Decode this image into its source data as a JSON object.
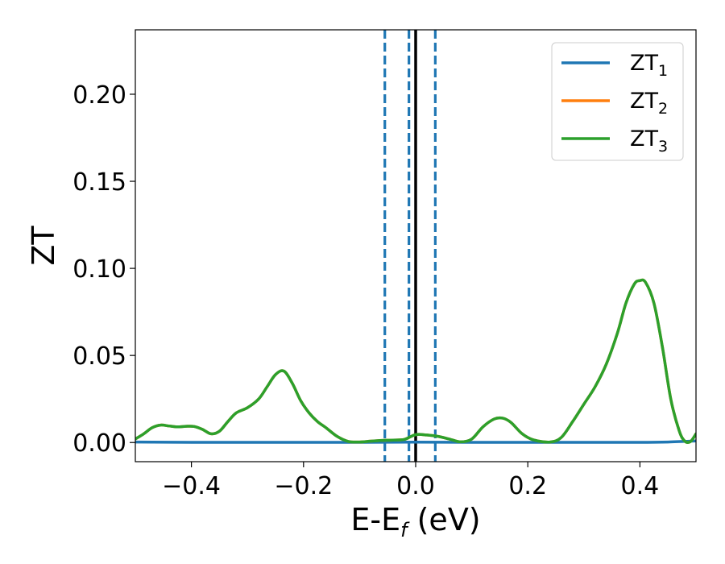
{
  "chart_data": {
    "type": "line",
    "xlabel": "E-E",
    "xlabel_sub": "f",
    "xlabel_unit": " (eV)",
    "ylabel": "ZT",
    "xlim": [
      -0.5,
      0.5
    ],
    "ylim": [
      -0.011,
      0.237
    ],
    "xticks": [
      -0.4,
      -0.2,
      0.0,
      0.2,
      0.4
    ],
    "xtick_labels": [
      "−0.4",
      "−0.2",
      "0.0",
      "0.2",
      "0.4"
    ],
    "yticks": [
      0.0,
      0.05,
      0.1,
      0.15,
      0.2
    ],
    "ytick_labels": [
      "0.00",
      "0.05",
      "0.10",
      "0.15",
      "0.20"
    ],
    "legend_position": "top-right",
    "grid": false,
    "vlines": [
      {
        "x": 0.0,
        "style": "solid",
        "color": "#000000"
      },
      {
        "x": -0.055,
        "style": "dashed",
        "color": "#1f77b4"
      },
      {
        "x": -0.012,
        "style": "dashed",
        "color": "#1f77b4"
      },
      {
        "x": 0.035,
        "style": "dashed",
        "color": "#1f77b4"
      }
    ],
    "series": [
      {
        "name": "ZT",
        "sub": "1",
        "color": "#1f77b4",
        "x": [
          -0.5,
          -0.4,
          -0.3,
          -0.2,
          -0.1,
          0.0,
          0.1,
          0.2,
          0.3,
          0.4,
          0.45,
          0.5
        ],
        "y": [
          0.0003,
          0.0001,
          0.0001,
          0.0001,
          0.0001,
          0.0002,
          0.0001,
          0.0001,
          0.0001,
          0.0001,
          0.0003,
          0.0009
        ]
      },
      {
        "name": "ZT",
        "sub": "2",
        "color": "#ff7f0e",
        "x": [
          -0.5,
          -0.485,
          -0.47,
          -0.455,
          -0.44,
          -0.425,
          -0.41,
          -0.395,
          -0.38,
          -0.365,
          -0.35,
          -0.335,
          -0.32,
          -0.3,
          -0.28,
          -0.265,
          -0.25,
          -0.235,
          -0.22,
          -0.205,
          -0.19,
          -0.175,
          -0.16,
          -0.14,
          -0.12,
          -0.1,
          -0.08,
          -0.06,
          -0.04,
          -0.02,
          0.0,
          0.02,
          0.04,
          0.06,
          0.08,
          0.1,
          0.12,
          0.14,
          0.155,
          0.17,
          0.19,
          0.21,
          0.24,
          0.26,
          0.28,
          0.3,
          0.32,
          0.34,
          0.36,
          0.375,
          0.39,
          0.4,
          0.41,
          0.425,
          0.44,
          0.455,
          0.47,
          0.48,
          0.49,
          0.5
        ],
        "y": [
          0.002,
          0.005,
          0.0085,
          0.01,
          0.0095,
          0.009,
          0.0093,
          0.0092,
          0.0075,
          0.005,
          0.0065,
          0.012,
          0.017,
          0.02,
          0.025,
          0.032,
          0.039,
          0.041,
          0.034,
          0.024,
          0.017,
          0.012,
          0.0085,
          0.0035,
          0.0006,
          0.0003,
          0.0008,
          0.0012,
          0.0014,
          0.0018,
          0.0045,
          0.0043,
          0.0035,
          0.002,
          0.0004,
          0.002,
          0.009,
          0.0135,
          0.014,
          0.0115,
          0.005,
          0.0015,
          0.0003,
          0.003,
          0.012,
          0.022,
          0.032,
          0.045,
          0.063,
          0.08,
          0.091,
          0.093,
          0.092,
          0.08,
          0.055,
          0.025,
          0.0068,
          0.0008,
          0.0005,
          0.005
        ]
      },
      {
        "name": "ZT",
        "sub": "3",
        "color": "#2ca02c",
        "x": [
          -0.5,
          -0.485,
          -0.47,
          -0.455,
          -0.44,
          -0.425,
          -0.41,
          -0.395,
          -0.38,
          -0.365,
          -0.35,
          -0.335,
          -0.32,
          -0.3,
          -0.28,
          -0.265,
          -0.25,
          -0.235,
          -0.22,
          -0.205,
          -0.19,
          -0.175,
          -0.16,
          -0.14,
          -0.12,
          -0.1,
          -0.08,
          -0.06,
          -0.04,
          -0.02,
          0.0,
          0.02,
          0.04,
          0.06,
          0.08,
          0.1,
          0.12,
          0.14,
          0.155,
          0.17,
          0.19,
          0.21,
          0.24,
          0.26,
          0.28,
          0.3,
          0.32,
          0.34,
          0.36,
          0.375,
          0.39,
          0.4,
          0.41,
          0.425,
          0.44,
          0.455,
          0.47,
          0.48,
          0.49,
          0.5
        ],
        "y": [
          0.002,
          0.005,
          0.0085,
          0.01,
          0.0095,
          0.009,
          0.0093,
          0.0092,
          0.0075,
          0.005,
          0.0065,
          0.012,
          0.017,
          0.02,
          0.025,
          0.032,
          0.039,
          0.041,
          0.034,
          0.024,
          0.017,
          0.012,
          0.0085,
          0.0035,
          0.0006,
          0.0003,
          0.0008,
          0.0012,
          0.0014,
          0.0018,
          0.0045,
          0.0043,
          0.0035,
          0.002,
          0.0004,
          0.002,
          0.009,
          0.0135,
          0.014,
          0.0115,
          0.005,
          0.0015,
          0.0003,
          0.003,
          0.012,
          0.022,
          0.032,
          0.045,
          0.063,
          0.08,
          0.091,
          0.093,
          0.092,
          0.08,
          0.055,
          0.025,
          0.0068,
          0.0008,
          0.0005,
          0.005
        ]
      }
    ]
  }
}
